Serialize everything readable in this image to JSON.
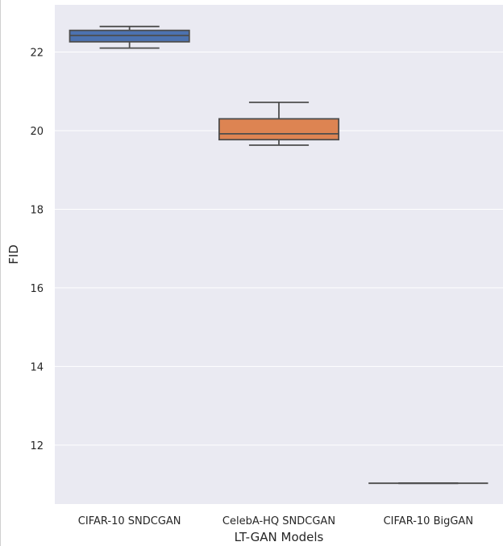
{
  "chart_data": {
    "type": "box",
    "xlabel": "LT-GAN Models",
    "ylabel": "FID",
    "ylim": [
      10.5,
      23.2
    ],
    "yticks": [
      12,
      14,
      16,
      18,
      20,
      22
    ],
    "grid": true,
    "colors": {
      "background": "#eaeaf2",
      "grid": "#ffffff",
      "edge": "#4d4d4d"
    },
    "boxes": [
      {
        "label": "CIFAR-10 SNDCGAN",
        "color": "#4c72b0",
        "whisker_low": 22.1,
        "q1": 22.26,
        "median": 22.42,
        "q3": 22.55,
        "whisker_high": 22.65
      },
      {
        "label": "CelebA-HQ SNDCGAN",
        "color": "#dd8452",
        "whisker_low": 19.63,
        "q1": 19.77,
        "median": 19.92,
        "q3": 20.3,
        "whisker_high": 20.72
      },
      {
        "label": "CIFAR-10 BigGAN",
        "color": "#55a868",
        "whisker_low": 11.03,
        "q1": 11.03,
        "median": 11.03,
        "q3": 11.03,
        "whisker_high": 11.03
      }
    ]
  }
}
